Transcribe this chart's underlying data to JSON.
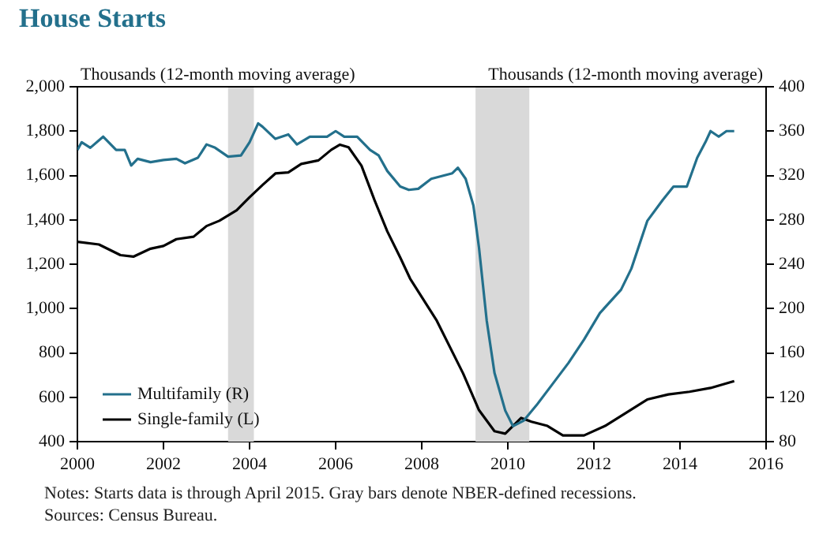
{
  "chart_data": {
    "type": "line",
    "title": "House Starts",
    "ylabel": "Thousands (12-month moving average)",
    "y2label": "Thousands (12-month moving average)",
    "xlim": [
      2000,
      2016
    ],
    "xticks": [
      2000,
      2002,
      2004,
      2006,
      2008,
      2010,
      2012,
      2014,
      2016
    ],
    "ylim": [
      400,
      2000
    ],
    "yticks": [
      {
        "value": 400,
        "label": "400"
      },
      {
        "value": 600,
        "label": "600"
      },
      {
        "value": 800,
        "label": "800"
      },
      {
        "value": 1000,
        "label": "1,000"
      },
      {
        "value": 1200,
        "label": "1,200"
      },
      {
        "value": 1400,
        "label": "1,400"
      },
      {
        "value": 1600,
        "label": "1,600"
      },
      {
        "value": 1800,
        "label": "1,800"
      },
      {
        "value": 2000,
        "label": "2,000"
      }
    ],
    "y2lim": [
      80,
      400
    ],
    "y2ticks": [
      80,
      120,
      160,
      200,
      240,
      280,
      320,
      360,
      400
    ],
    "grid": false,
    "legend": "bottom left",
    "marker": "none",
    "line_style": "solid",
    "bands": [
      {
        "axis": "x",
        "from": 2003.5,
        "to": 2004.1,
        "color": "#d9d9d9"
      },
      {
        "axis": "x",
        "from": 2009.25,
        "to": 2010.5,
        "color": "#d9d9d9"
      }
    ],
    "series": [
      {
        "name": "Multifamily (R)",
        "color": "#23708c",
        "axis": "y2",
        "x": [
          2000,
          2000.1,
          2000.3,
          2000.6,
          2000.9,
          2001.1,
          2001.25,
          2001.4,
          2001.7,
          2002,
          2002.3,
          2002.5,
          2002.8,
          2003,
          2003.2,
          2003.5,
          2003.8,
          2004,
          2004.2,
          2004.3,
          2004.6,
          2004.9,
          2005.1,
          2005.4,
          2005.8,
          2006,
          2006.2,
          2006.5,
          2006.8,
          2007,
          2007.2,
          2007.5,
          2007.7,
          2007.92,
          2008.22,
          2008.71,
          2008.84,
          2009.02,
          2009.2,
          2009.33,
          2009.51,
          2009.69,
          2009.94,
          2010.12,
          2010.37,
          2010.67,
          2011.04,
          2011.41,
          2011.77,
          2012.14,
          2012.63,
          2012.87,
          2013.24,
          2013.6,
          2013.85,
          2014.16,
          2014.4,
          2014.59,
          2014.71,
          2014.9,
          2015.08,
          2015.26
        ],
        "values": [
          343,
          350,
          345,
          355,
          343,
          343,
          329,
          335,
          332,
          334,
          335,
          331,
          336,
          348,
          345,
          337,
          338,
          350,
          367,
          364,
          353,
          357,
          348,
          355,
          355,
          360,
          355,
          355,
          343,
          338,
          324,
          310,
          307,
          308,
          317,
          322,
          327,
          317,
          293,
          255,
          189,
          142,
          108,
          94,
          99,
          113,
          132,
          151,
          172,
          196,
          217,
          236,
          279,
          298,
          310,
          310,
          336,
          350,
          360,
          355,
          360,
          360
        ]
      },
      {
        "name": "Single-family (L)",
        "color": "#000000",
        "axis": "y",
        "x": [
          2000,
          2000.5,
          2001,
          2001.3,
          2001.7,
          2002,
          2002.3,
          2002.7,
          2003,
          2003.3,
          2003.7,
          2004,
          2004.3,
          2004.6,
          2004.9,
          2005.2,
          2005.6,
          2005.9,
          2006.1,
          2006.3,
          2006.6,
          2006.9,
          2007.2,
          2007.5,
          2007.73,
          2008.35,
          2008.96,
          2009.33,
          2009.69,
          2009.94,
          2010.31,
          2010.55,
          2010.92,
          2011.28,
          2011.77,
          2012.26,
          2012.75,
          2013.24,
          2013.73,
          2014.22,
          2014.71,
          2015.26
        ],
        "values": [
          1301,
          1289,
          1241,
          1234,
          1270,
          1282,
          1313,
          1324,
          1372,
          1396,
          1443,
          1502,
          1557,
          1609,
          1614,
          1652,
          1668,
          1716,
          1739,
          1727,
          1644,
          1490,
          1348,
          1230,
          1135,
          945,
          708,
          542,
          447,
          436,
          507,
          490,
          471,
          428,
          428,
          471,
          530,
          590,
          613,
          625,
          642,
          673
        ]
      }
    ],
    "annotations": [
      "Notes: Starts data is through April 2015. Gray bars denote NBER-defined recessions.",
      "Sources: Census Bureau."
    ]
  }
}
